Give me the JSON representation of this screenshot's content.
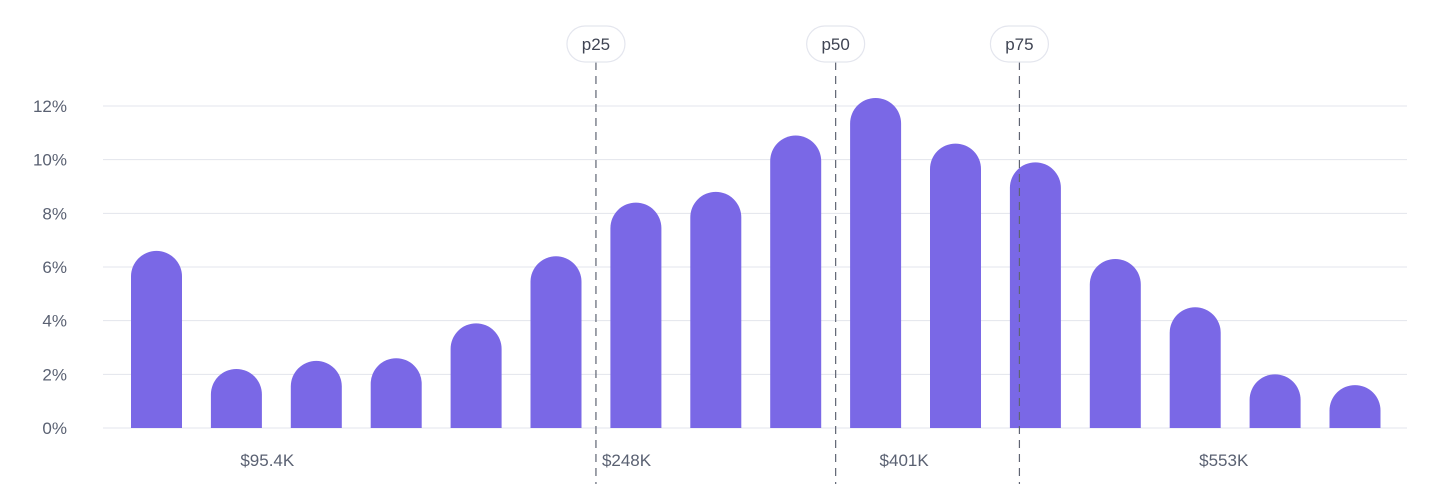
{
  "chart_data": {
    "type": "bar",
    "title": "",
    "xlabel": "",
    "ylabel": "",
    "ylim": [
      0,
      12
    ],
    "y_ticks": [
      "0%",
      "2%",
      "4%",
      "6%",
      "8%",
      "10%",
      "12%"
    ],
    "y_tick_values": [
      0,
      2,
      4,
      6,
      8,
      10,
      12
    ],
    "x_tick_labels": [
      {
        "label": "$95.4K",
        "after_bar": 2
      },
      {
        "label": "$248K",
        "after_bar": 6
      },
      {
        "label": "$401K",
        "after_bar": 10
      },
      {
        "label": "$553K",
        "after_bar": 14
      }
    ],
    "values": [
      6.6,
      2.2,
      2.5,
      2.6,
      3.9,
      6.4,
      8.4,
      8.8,
      10.9,
      12.3,
      10.6,
      9.9,
      6.3,
      4.5,
      2.0,
      1.6
    ],
    "percentiles": [
      {
        "label": "p25",
        "after_bar": 6
      },
      {
        "label": "p50",
        "after_bar": 9
      },
      {
        "label": "p75",
        "after_bar": 11.3
      }
    ],
    "grid": true,
    "colors": {
      "bar": "#7a68e6",
      "grid": "#e3e5ec",
      "text": "#5a6172",
      "marker": "#5f6472"
    }
  }
}
